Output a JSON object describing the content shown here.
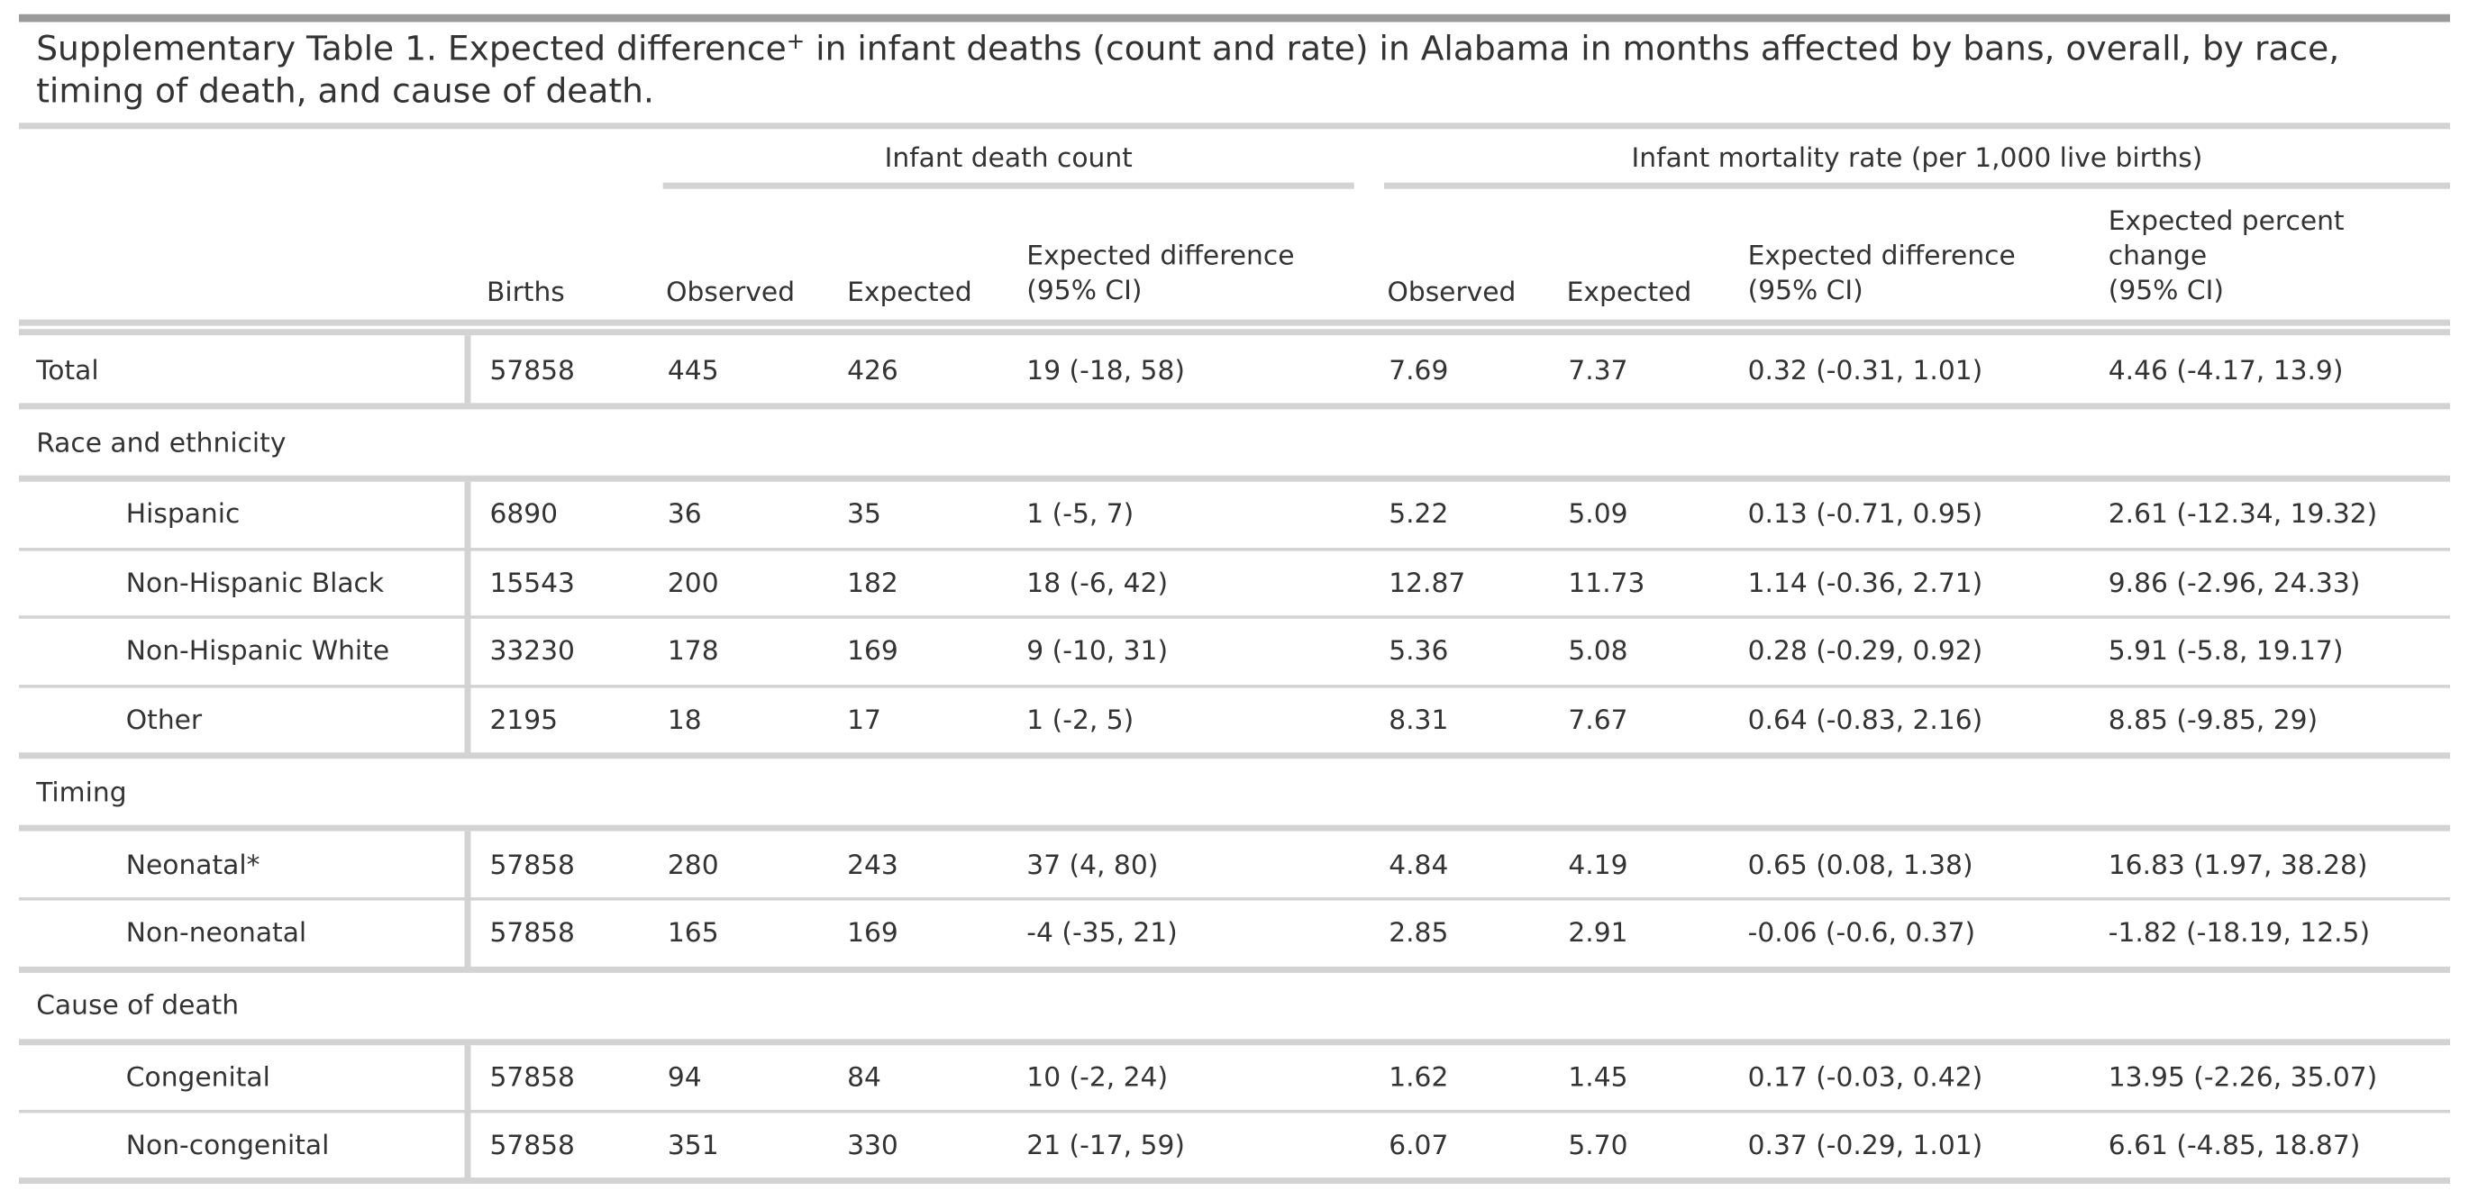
{
  "title": {
    "text_before": "Supplementary Table 1. Expected difference",
    "superscript": "+",
    "text_after": " in infant deaths (count and rate) in Alabama in months affected by bans, overall, by race, timing of death, and cause of death."
  },
  "spanners": {
    "count": "Infant death count",
    "rate": "Infant mortality rate (per 1,000 live births)"
  },
  "columns": {
    "births": "Births",
    "count_observed": "Observed",
    "count_expected": "Expected",
    "count_diff_line1": "Expected difference",
    "count_diff_line2": "(95% CI)",
    "rate_observed": "Observed",
    "rate_expected": "Expected",
    "rate_diff_line1": "Expected difference",
    "rate_diff_line2": "(95% CI)",
    "rate_pct_line1": "Expected percent",
    "rate_pct_line2": "change",
    "rate_pct_line3": "(95% CI)"
  },
  "groups": {
    "race": "Race and ethnicity",
    "timing": "Timing",
    "cause": "Cause of death"
  },
  "rows": [
    {
      "label": "Total",
      "births": "57858",
      "obs": "445",
      "exp": "426",
      "diff": "19 (-18, 58)",
      "robs": "7.69",
      "rexp": "7.37",
      "rdiff": "0.32 (-0.31, 1.01)",
      "pct": "4.46 (-4.17, 13.9)"
    },
    {
      "label": "Hispanic",
      "births": "6890",
      "obs": "36",
      "exp": "35",
      "diff": "1 (-5, 7)",
      "robs": "5.22",
      "rexp": "5.09",
      "rdiff": "0.13 (-0.71, 0.95)",
      "pct": "2.61 (-12.34, 19.32)"
    },
    {
      "label": "Non-Hispanic Black",
      "births": "15543",
      "obs": "200",
      "exp": "182",
      "diff": "18 (-6, 42)",
      "robs": "12.87",
      "rexp": "11.73",
      "rdiff": "1.14 (-0.36, 2.71)",
      "pct": "9.86 (-2.96, 24.33)"
    },
    {
      "label": "Non-Hispanic White",
      "births": "33230",
      "obs": "178",
      "exp": "169",
      "diff": "9 (-10, 31)",
      "robs": "5.36",
      "rexp": "5.08",
      "rdiff": "0.28 (-0.29, 0.92)",
      "pct": "5.91 (-5.8, 19.17)"
    },
    {
      "label": "Other",
      "births": "2195",
      "obs": "18",
      "exp": "17",
      "diff": "1 (-2, 5)",
      "robs": "8.31",
      "rexp": "7.67",
      "rdiff": "0.64 (-0.83, 2.16)",
      "pct": "8.85 (-9.85, 29)"
    },
    {
      "label": "Neonatal*",
      "births": "57858",
      "obs": "280",
      "exp": "243",
      "diff": "37 (4, 80)",
      "robs": "4.84",
      "rexp": "4.19",
      "rdiff": "0.65 (0.08, 1.38)",
      "pct": "16.83 (1.97, 38.28)"
    },
    {
      "label": "Non-neonatal",
      "births": "57858",
      "obs": "165",
      "exp": "169",
      "diff": "-4 (-35, 21)",
      "robs": "2.85",
      "rexp": "2.91",
      "rdiff": "-0.06 (-0.6, 0.37)",
      "pct": "-1.82 (-18.19, 12.5)"
    },
    {
      "label": "Congenital",
      "births": "57858",
      "obs": "94",
      "exp": "84",
      "diff": "10 (-2, 24)",
      "robs": "1.62",
      "rexp": "1.45",
      "rdiff": "0.17 (-0.03, 0.42)",
      "pct": "13.95 (-2.26, 35.07)"
    },
    {
      "label": "Non-congenital",
      "births": "57858",
      "obs": "351",
      "exp": "330",
      "diff": "21 (-17, 59)",
      "robs": "6.07",
      "rexp": "5.70",
      "rdiff": "0.37 (-0.29, 1.01)",
      "pct": "6.61 (-4.85, 18.87)"
    }
  ]
}
